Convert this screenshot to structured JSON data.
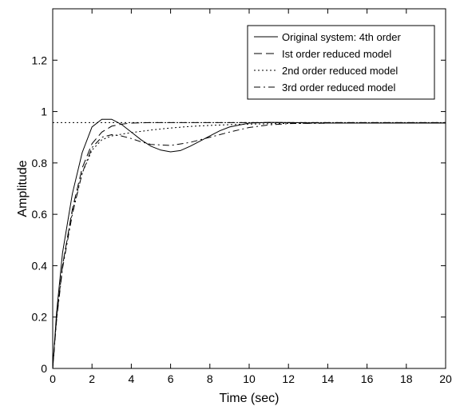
{
  "chart_data": {
    "type": "line",
    "title": "",
    "xlabel": "Time (sec)",
    "ylabel": "Amplitude",
    "xlim": [
      0,
      20
    ],
    "ylim": [
      0,
      1.4
    ],
    "xticks": [
      0,
      2,
      4,
      6,
      8,
      10,
      12,
      14,
      16,
      18,
      20
    ],
    "yticks": [
      0,
      0.2,
      0.4,
      0.6,
      0.8,
      1,
      1.2
    ],
    "xtick_labels": [
      "0",
      "2",
      "4",
      "6",
      "8",
      "10",
      "12",
      "14",
      "16",
      "18",
      "20"
    ],
    "ytick_labels": [
      "0",
      "0.2",
      "0.4",
      "0.6",
      "0.8",
      "1",
      "1.2"
    ],
    "grid": false,
    "legend_position": "top-right",
    "series": [
      {
        "name": "Original system: 4th order",
        "style": "solid",
        "color": "#000000",
        "x": [
          0,
          0.2,
          0.5,
          1,
          1.5,
          2,
          2.5,
          3,
          3.5,
          4,
          4.5,
          5,
          5.5,
          6,
          6.5,
          7,
          7.5,
          8,
          8.5,
          9,
          10,
          11,
          12,
          14,
          16,
          18,
          20
        ],
        "y": [
          0,
          0.22,
          0.45,
          0.68,
          0.84,
          0.94,
          0.97,
          0.97,
          0.95,
          0.92,
          0.89,
          0.865,
          0.85,
          0.843,
          0.848,
          0.865,
          0.885,
          0.905,
          0.925,
          0.94,
          0.955,
          0.958,
          0.957,
          0.955,
          0.955,
          0.955,
          0.955
        ]
      },
      {
        "name": "Ist order reduced model",
        "style": "longdash",
        "color": "#000000",
        "x": [
          0,
          0.2,
          0.5,
          1,
          1.5,
          2,
          2.5,
          3,
          3.5,
          4,
          5,
          6,
          8,
          10,
          12,
          14,
          16,
          18,
          20
        ],
        "y": [
          0,
          0.2,
          0.4,
          0.62,
          0.78,
          0.875,
          0.92,
          0.943,
          0.951,
          0.955,
          0.957,
          0.957,
          0.957,
          0.957,
          0.957,
          0.957,
          0.957,
          0.957,
          0.957
        ]
      },
      {
        "name": "2nd order reduced model",
        "style": "dotted",
        "color": "#000000",
        "x": [
          0,
          0.2,
          0.5,
          1,
          1.5,
          2,
          2.5,
          3,
          3.5,
          4,
          5,
          6,
          7,
          8,
          9,
          10,
          12,
          14,
          16,
          18,
          20
        ],
        "y": [
          0,
          0.2,
          0.4,
          0.61,
          0.76,
          0.85,
          0.89,
          0.905,
          0.912,
          0.918,
          0.928,
          0.936,
          0.942,
          0.946,
          0.949,
          0.951,
          0.954,
          0.955,
          0.955,
          0.956,
          0.956
        ]
      },
      {
        "name": "3rd order reduced model",
        "style": "dashdot",
        "color": "#000000",
        "x": [
          0,
          0.2,
          0.5,
          1,
          1.5,
          2,
          2.5,
          3,
          3.5,
          4,
          4.5,
          5,
          6,
          7,
          8,
          9,
          10,
          11,
          12,
          14,
          16,
          18,
          20
        ],
        "y": [
          0,
          0.19,
          0.39,
          0.6,
          0.76,
          0.86,
          0.9,
          0.91,
          0.905,
          0.895,
          0.882,
          0.872,
          0.868,
          0.88,
          0.9,
          0.92,
          0.938,
          0.948,
          0.953,
          0.955,
          0.955,
          0.955,
          0.955
        ]
      },
      {
        "name": "",
        "style": "dotted",
        "color": "#000000",
        "x": [
          0,
          20
        ],
        "y": [
          0.957,
          0.957
        ]
      }
    ]
  }
}
